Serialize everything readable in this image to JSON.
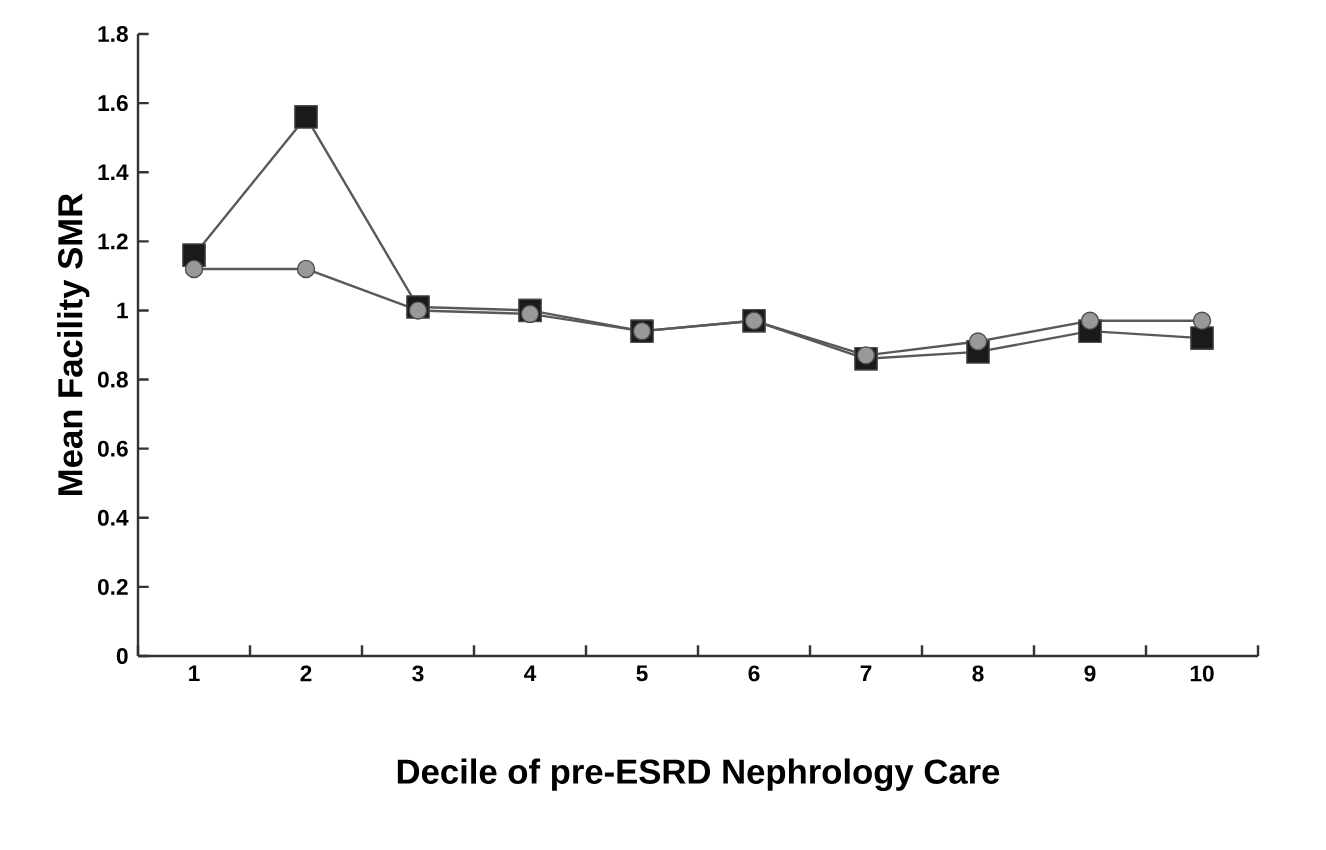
{
  "chart_data": {
    "type": "line",
    "xlabel": "Decile of pre-ESRD Nephrology Care",
    "ylabel": "Mean Facility SMR",
    "categories": [
      "1",
      "2",
      "3",
      "4",
      "5",
      "6",
      "7",
      "8",
      "9",
      "10"
    ],
    "series": [
      {
        "color": "#1a1a1a",
        "marker": "square",
        "values": [
          1.16,
          1.56,
          1.01,
          1.0,
          0.94,
          0.97,
          0.86,
          0.88,
          0.94,
          0.92
        ]
      },
      {
        "color": "#999999",
        "marker": "circle",
        "values": [
          1.12,
          1.12,
          1.0,
          0.99,
          0.94,
          0.97,
          0.87,
          0.91,
          0.97,
          0.97
        ]
      }
    ],
    "ylim": [
      0,
      1.8
    ],
    "yticks": [
      0,
      0.2,
      0.4,
      0.6,
      0.8,
      1,
      1.2,
      1.4,
      1.6,
      1.8
    ],
    "line_style": "solid"
  }
}
